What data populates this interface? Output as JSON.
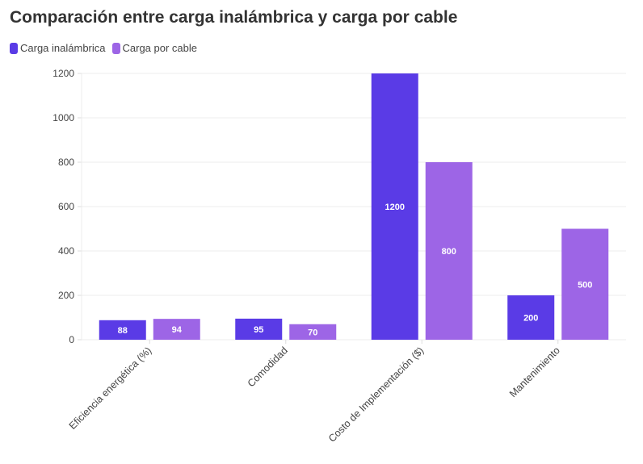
{
  "chart_data": {
    "type": "bar",
    "title": "Comparación entre carga inalámbrica y carga por cable",
    "categories": [
      "Eficiencia energética (%)",
      "Comodidad",
      "Costo de Implementación ($)",
      "Mantenimiento"
    ],
    "series": [
      {
        "name": "Carga inalámbrica",
        "values": [
          88,
          95,
          1200,
          200
        ],
        "color": "#5a3be6"
      },
      {
        "name": "Carga por cable",
        "values": [
          94,
          70,
          800,
          500
        ],
        "color": "#9d65e6"
      }
    ],
    "ylim": [
      0,
      1200
    ],
    "yticks": [
      0,
      200,
      400,
      600,
      800,
      1000,
      1200
    ],
    "grid": true,
    "legend": "top-left",
    "data_labels": true
  }
}
